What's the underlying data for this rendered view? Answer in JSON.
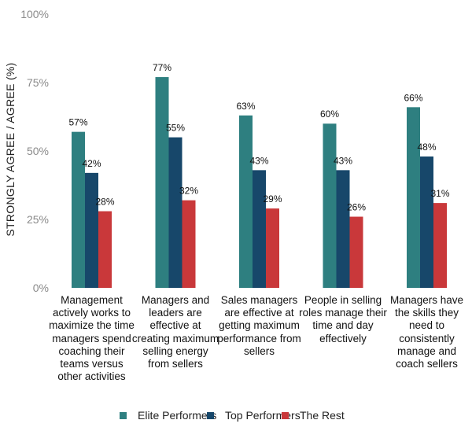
{
  "chart_data": {
    "type": "bar",
    "title": "",
    "xlabel": "",
    "ylabel": "STRONGLY AGREE / AGREE (%)",
    "ylim": [
      0,
      100
    ],
    "yticks": [
      {
        "value": 0,
        "label": "0%"
      },
      {
        "value": 25,
        "label": "25%"
      },
      {
        "value": 50,
        "label": "50%"
      },
      {
        "value": 75,
        "label": "75%"
      },
      {
        "value": 100,
        "label": "100%"
      }
    ],
    "grid": false,
    "legend_position": "bottom",
    "categories": [
      "Management actively works to maximize the time managers spend coaching their teams versus other activities",
      "Managers and leaders are effective at creating maximum selling energy from sellers",
      "Sales managers are effective at getting maximum performance from sellers",
      "People in selling roles manage their time and day effectively",
      "Managers have the skills they need to consistently manage and coach sellers"
    ],
    "series": [
      {
        "name": "Elite Performers",
        "color": "#2e7f80",
        "values": [
          57,
          77,
          63,
          60,
          66
        ],
        "labels": [
          "57%",
          "77%",
          "63%",
          "60%",
          "66%"
        ]
      },
      {
        "name": "Top Performers",
        "color": "#17476a",
        "values": [
          42,
          55,
          43,
          43,
          48
        ],
        "labels": [
          "42%",
          "55%",
          "43%",
          "43%",
          "48%"
        ]
      },
      {
        "name": "The Rest",
        "color": "#c9383a",
        "values": [
          28,
          32,
          29,
          26,
          31
        ],
        "labels": [
          "28%",
          "32%",
          "29%",
          "26%",
          "31%"
        ]
      }
    ]
  }
}
